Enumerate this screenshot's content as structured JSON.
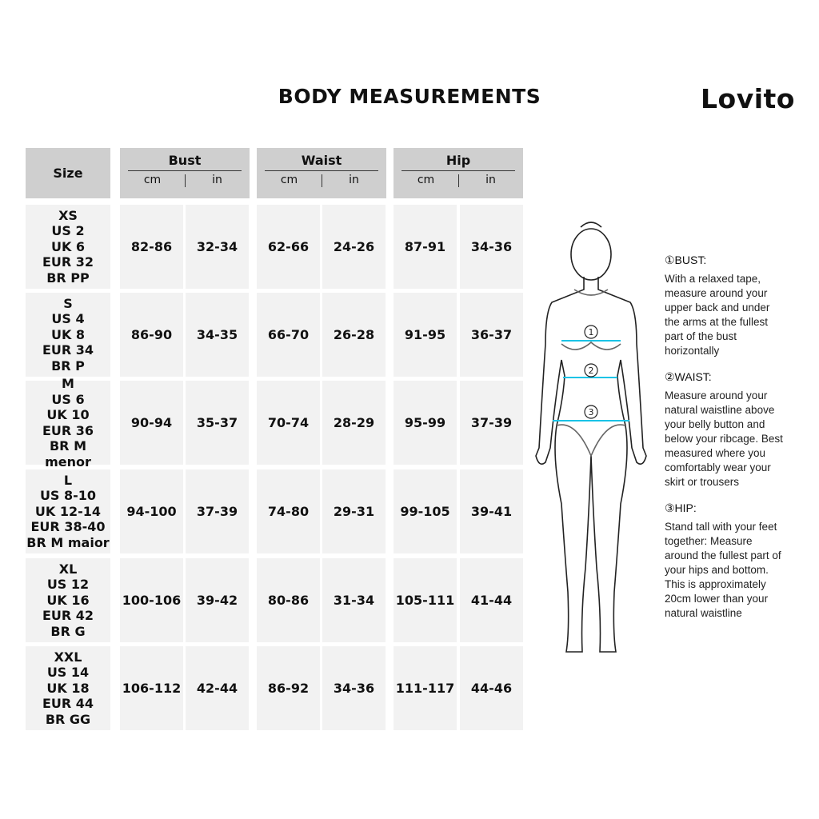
{
  "title": "BODY MEASUREMENTS",
  "brand": "Lovito",
  "table": {
    "size_header": "Size",
    "groups": [
      {
        "label": "Bust",
        "units": [
          "cm",
          "in"
        ]
      },
      {
        "label": "Waist",
        "units": [
          "cm",
          "in"
        ]
      },
      {
        "label": "Hip",
        "units": [
          "cm",
          "in"
        ]
      }
    ],
    "rows": [
      {
        "size": [
          "XS",
          "US 2",
          "UK 6",
          "EUR 32",
          "BR PP"
        ],
        "values": [
          "82-86",
          "32-34",
          "62-66",
          "24-26",
          "87-91",
          "34-36"
        ]
      },
      {
        "size": [
          "S",
          "US 4",
          "UK 8",
          "EUR 34",
          "BR P"
        ],
        "values": [
          "86-90",
          "34-35",
          "66-70",
          "26-28",
          "91-95",
          "36-37"
        ]
      },
      {
        "size": [
          "M",
          "US 6",
          "UK 10",
          "EUR 36",
          "BR M menor"
        ],
        "values": [
          "90-94",
          "35-37",
          "70-74",
          "28-29",
          "95-99",
          "37-39"
        ]
      },
      {
        "size": [
          "L",
          "US 8-10",
          "UK 12-14",
          "EUR 38-40",
          "BR M maior"
        ],
        "values": [
          "94-100",
          "37-39",
          "74-80",
          "29-31",
          "99-105",
          "39-41"
        ]
      },
      {
        "size": [
          "XL",
          "US 12",
          "UK 16",
          "EUR 42",
          "BR G"
        ],
        "values": [
          "100-106",
          "39-42",
          "80-86",
          "31-34",
          "105-111",
          "41-44"
        ]
      },
      {
        "size": [
          "XXL",
          "US 14",
          "UK 18",
          "EUR 44",
          "BR GG"
        ],
        "values": [
          "106-112",
          "42-44",
          "86-92",
          "34-36",
          "111-117",
          "44-46"
        ]
      }
    ]
  },
  "figure": {
    "markers": [
      "1",
      "2",
      "3"
    ],
    "line_color": "#19c3e6"
  },
  "guide": [
    {
      "heading": "①BUST:",
      "lines": [
        "With a relaxed tape,",
        "measure around your",
        "upper back and under",
        "the arms at the fullest",
        "part of the bust",
        "horizontally"
      ]
    },
    {
      "heading": "②WAIST:",
      "lines": [
        "Measure around your",
        "natural waistline above",
        "your belly button and",
        "below your ribcage. Best",
        "measured where you",
        "comfortably wear your",
        "skirt or trousers"
      ]
    },
    {
      "heading": "③HIP:",
      "lines": [
        "Stand tall with your feet",
        "together: Measure",
        "around the fullest part of",
        "your hips and bottom.",
        "This is approximately",
        "20cm lower than your",
        "natural waistline"
      ]
    }
  ]
}
